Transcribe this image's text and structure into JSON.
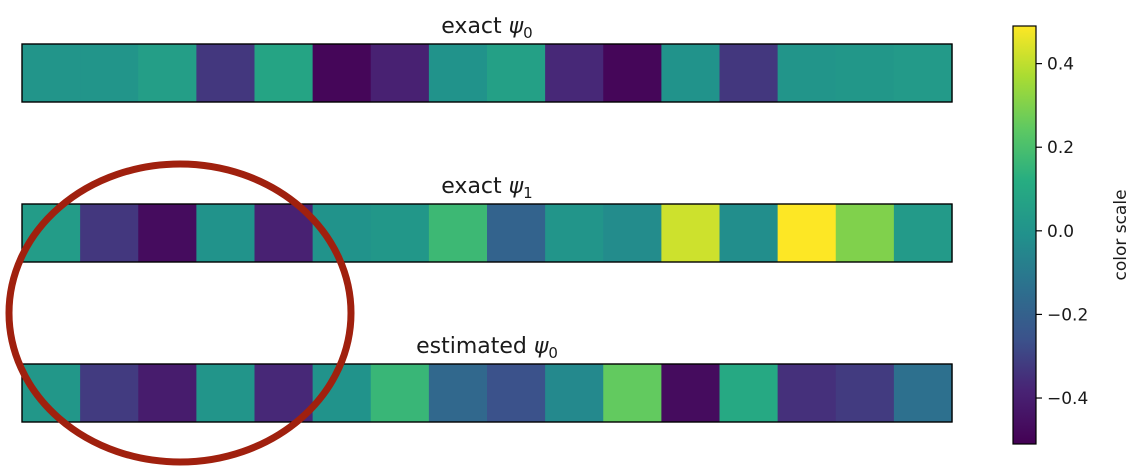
{
  "chart_data": {
    "type": "heatmap",
    "panels": [
      {
        "title": "exact ψ0",
        "title_prefix": "exact ",
        "psi": "ψ",
        "subscript": "0",
        "values": [
          0.01,
          0.01,
          0.05,
          -0.33,
          0.08,
          -0.49,
          -0.39,
          0.0,
          0.06,
          -0.37,
          -0.49,
          0.0,
          -0.33,
          0.01,
          0.02,
          0.03
        ]
      },
      {
        "title": "exact ψ1",
        "title_prefix": "exact ",
        "psi": "ψ",
        "subscript": "1",
        "values": [
          0.04,
          -0.33,
          -0.47,
          0.0,
          -0.39,
          0.0,
          0.02,
          0.17,
          -0.19,
          0.01,
          -0.03,
          0.42,
          -0.02,
          0.49,
          0.3,
          0.03
        ]
      },
      {
        "title": "estimated ψ0",
        "title_prefix": "estimated ",
        "psi": "ψ",
        "subscript": "0",
        "values": [
          0.02,
          -0.32,
          -0.41,
          0.01,
          -0.37,
          0.0,
          0.16,
          -0.17,
          -0.26,
          -0.04,
          0.25,
          -0.47,
          0.1,
          -0.35,
          -0.32,
          -0.14
        ]
      }
    ],
    "colorbar": {
      "label": "color scale",
      "range": [
        -0.51,
        0.49
      ],
      "colormap": "viridis",
      "ticks": [
        0.4,
        0.2,
        0.0,
        -0.2,
        -0.4
      ],
      "tick_labels": [
        "0.4",
        "0.2",
        "0.0",
        "−0.2",
        "−0.4"
      ]
    },
    "annotation": {
      "shape": "ellipse",
      "color": "#a0200e",
      "target": "first five cells of exact ψ1 and estimated ψ0"
    }
  }
}
